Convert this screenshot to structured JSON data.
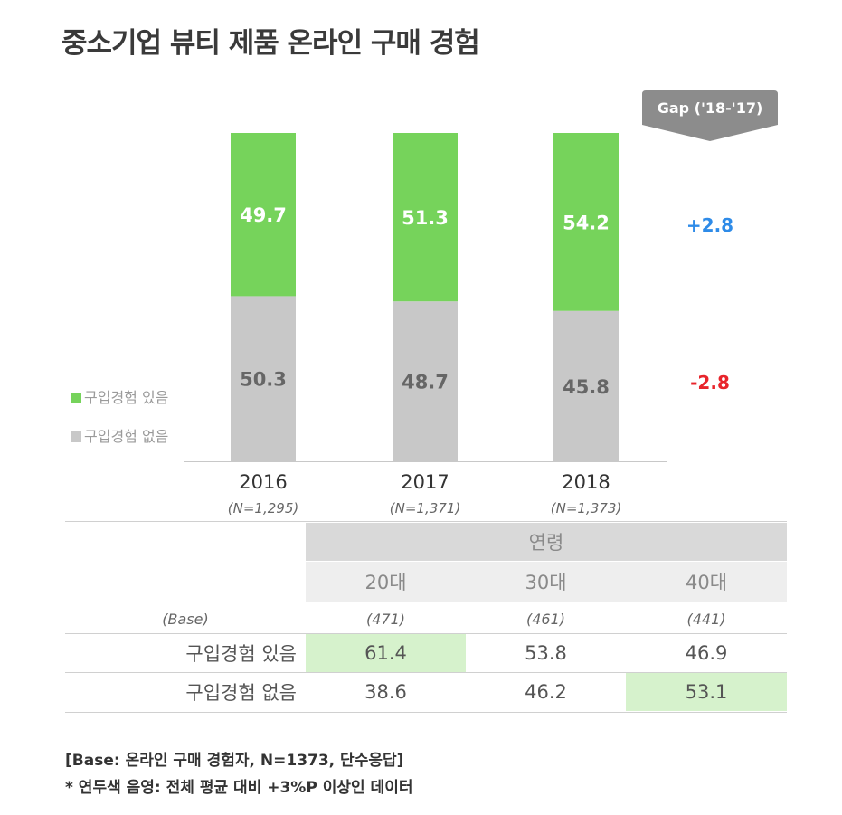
{
  "title": "중소기업 뷰티 제품 온라인 구매 경험",
  "colors": {
    "green": "#76d35b",
    "gray": "#c8c8c8",
    "positive": "#2e8be8",
    "negative": "#e8242b",
    "highlight": "#d6f2cc"
  },
  "legend": [
    {
      "label": "구입경험 있음",
      "color": "#76d35b"
    },
    {
      "label": "구입경험 없음",
      "color": "#c8c8c8"
    }
  ],
  "gap": {
    "header": "Gap ('18-'17)",
    "values": [
      "+2.8",
      "-2.8"
    ]
  },
  "chart_data": {
    "type": "bar",
    "stacked": true,
    "categories": [
      "2016",
      "2017",
      "2018"
    ],
    "category_notes": [
      "(N=1,295)",
      "(N=1,371)",
      "(N=1,373)"
    ],
    "series": [
      {
        "name": "구입경험 있음",
        "values": [
          49.7,
          51.3,
          54.2
        ]
      },
      {
        "name": "구입경험 없음",
        "values": [
          50.3,
          48.7,
          45.8
        ]
      }
    ],
    "ylim": [
      0,
      100
    ],
    "title": "중소기업 뷰티 제품 온라인 구매 경험",
    "xlabel": "",
    "ylabel": ""
  },
  "table": {
    "group_header": "연령",
    "columns": [
      "20대",
      "30대",
      "40대"
    ],
    "base_label": "(Base)",
    "base_values": [
      "(471)",
      "(461)",
      "(441)"
    ],
    "rows": [
      {
        "label": "구입경험 있음",
        "values": [
          "61.4",
          "53.8",
          "46.9"
        ],
        "highlight": [
          true,
          false,
          false
        ]
      },
      {
        "label": "구입경험 없음",
        "values": [
          "38.6",
          "46.2",
          "53.1"
        ],
        "highlight": [
          false,
          false,
          true
        ]
      }
    ]
  },
  "footnotes": [
    "[Base: 온라인 구매 경험자, N=1373, 단수응답]",
    "* 연두색 음영: 전체 평균 대비 +3%P 이상인 데이터"
  ]
}
